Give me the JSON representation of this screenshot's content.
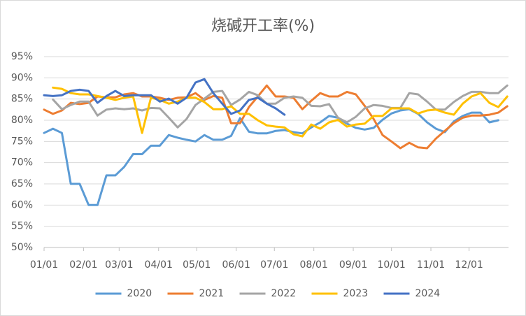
{
  "chart_data": {
    "type": "line",
    "title": "烧碱开工率(%)",
    "x": [
      0,
      7,
      14,
      21,
      28,
      35,
      42,
      49,
      56,
      63,
      70,
      77,
      84,
      91,
      98,
      105,
      112,
      119,
      126,
      133,
      140,
      147,
      154,
      161,
      168,
      175,
      182,
      189,
      196,
      203,
      210,
      217,
      224,
      231,
      238,
      245,
      252,
      259,
      266,
      273,
      280,
      287,
      294,
      301,
      308,
      315,
      322,
      329,
      336,
      343,
      350,
      357,
      364
    ],
    "xlim": [
      0,
      365
    ],
    "xticks": [
      {
        "value": 0,
        "label": "01/01"
      },
      {
        "value": 31,
        "label": "02/01"
      },
      {
        "value": 59,
        "label": "03/01"
      },
      {
        "value": 90,
        "label": "04/01"
      },
      {
        "value": 120,
        "label": "05/01"
      },
      {
        "value": 151,
        "label": "06/01"
      },
      {
        "value": 181,
        "label": "07/01"
      },
      {
        "value": 212,
        "label": "08/01"
      },
      {
        "value": 243,
        "label": "09/01"
      },
      {
        "value": 273,
        "label": "10/01"
      },
      {
        "value": 304,
        "label": "11/01"
      },
      {
        "value": 334,
        "label": "12/01"
      }
    ],
    "ylim": [
      50,
      95
    ],
    "yticks": [
      {
        "value": 50,
        "label": "50%"
      },
      {
        "value": 55,
        "label": "55%"
      },
      {
        "value": 60,
        "label": "60%"
      },
      {
        "value": 65,
        "label": "65%"
      },
      {
        "value": 70,
        "label": "70%"
      },
      {
        "value": 75,
        "label": "75%"
      },
      {
        "value": 80,
        "label": "80%"
      },
      {
        "value": 85,
        "label": "85%"
      },
      {
        "value": 90,
        "label": "90%"
      },
      {
        "value": 95,
        "label": "95%"
      }
    ],
    "grid": true,
    "legend": "bottom",
    "series": [
      {
        "name": "2020",
        "color": "#5b9bd5",
        "values": [
          77,
          78,
          77,
          65,
          65,
          60,
          60,
          67,
          67,
          69,
          72,
          72,
          74,
          74,
          76.5,
          75.9,
          75.4,
          75,
          76.5,
          75.4,
          75.4,
          76.3,
          80.5,
          77.3,
          76.9,
          76.9,
          77.5,
          77.7,
          77.2,
          76.9,
          78.3,
          79.5,
          81,
          80.6,
          79.2,
          78.2,
          77.8,
          78.2,
          80.1,
          81.6,
          82.3,
          82.6,
          81.5,
          79.5,
          78,
          77.2,
          79.7,
          81,
          81.8,
          81.8,
          79.5,
          80,
          null
        ]
      },
      {
        "name": "2021",
        "color": "#ed7d31",
        "values": [
          82.5,
          81.5,
          82.3,
          84.1,
          83.8,
          84.1,
          85.6,
          85.4,
          85.4,
          86.1,
          86.4,
          85.6,
          85.6,
          85.3,
          84.8,
          85.3,
          85.4,
          86.4,
          84.8,
          85.7,
          85.3,
          79.3,
          79.3,
          83.1,
          85.6,
          88.2,
          85.6,
          85.6,
          85.3,
          82.6,
          84.6,
          86.4,
          85.6,
          85.6,
          86.7,
          86.1,
          83.4,
          80.3,
          76.5,
          75,
          73.4,
          74.7,
          73.6,
          73.4,
          75.7,
          77.5,
          79.3,
          80.6,
          81.1,
          81.1,
          81.3,
          81.8,
          83.3
        ]
      },
      {
        "name": "2022",
        "color": "#a5a5a5",
        "values": [
          null,
          84.9,
          82.6,
          83.6,
          84.4,
          84.4,
          81.1,
          82.5,
          82.8,
          82.6,
          82.8,
          82.3,
          82.9,
          82.8,
          80.6,
          78.3,
          80.3,
          83.6,
          85.1,
          86.7,
          86.9,
          83.6,
          84.9,
          86.7,
          85.9,
          83.9,
          83.9,
          85.3,
          85.6,
          85.3,
          83.4,
          83.3,
          83.8,
          80.6,
          79.5,
          80.8,
          82.8,
          83.6,
          83.4,
          82.9,
          82.9,
          86.4,
          86.1,
          84.4,
          82.5,
          82.5,
          84.3,
          85.7,
          86.7,
          86.7,
          86.4,
          86.4,
          88.2
        ]
      },
      {
        "name": "2023",
        "color": "#ffc000",
        "values": [
          null,
          87.7,
          87.4,
          86.4,
          86.1,
          86.1,
          85.7,
          85.3,
          84.8,
          85.3,
          85.6,
          77,
          85.3,
          84.8,
          83.9,
          84.4,
          85.3,
          85.3,
          84.3,
          82.6,
          82.6,
          83.3,
          81.5,
          81.5,
          80,
          78.8,
          78.5,
          78.3,
          76.7,
          76.2,
          79,
          78,
          79.5,
          80.1,
          78.5,
          79,
          79.2,
          81,
          81,
          82.8,
          82.8,
          82.8,
          81.6,
          82.3,
          82.5,
          81.8,
          81.3,
          83.9,
          85.6,
          86.4,
          84.1,
          83.1,
          85.6
        ]
      },
      {
        "name": "2024",
        "color": "#4472c4",
        "values": [
          85.9,
          85.7,
          85.9,
          86.9,
          87.2,
          86.9,
          84.1,
          85.7,
          86.9,
          85.7,
          85.9,
          85.9,
          85.9,
          84.4,
          85.1,
          83.9,
          85.3,
          88.9,
          89.7,
          86.4,
          83.9,
          81.5,
          82.3,
          84.8,
          85.3,
          83.9,
          82.8,
          81.3,
          null,
          null,
          null,
          null,
          null,
          null,
          null,
          null,
          null,
          null,
          null,
          null,
          null,
          null,
          null,
          null,
          null,
          null,
          null,
          null,
          null,
          null,
          null,
          null,
          null
        ]
      }
    ]
  }
}
